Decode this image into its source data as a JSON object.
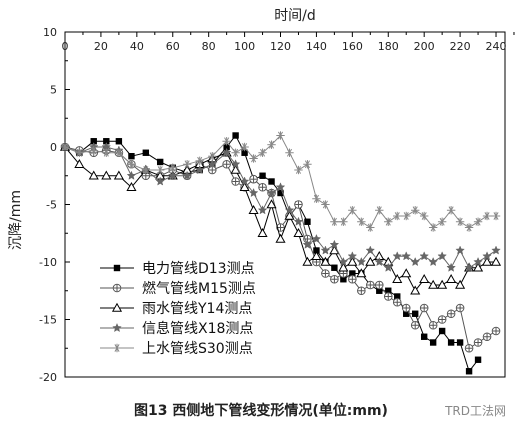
{
  "chart_data": {
    "type": "line",
    "title": "",
    "xlabel": "时间/d",
    "ylabel": "沉降/mm",
    "xlim": [
      0,
      245
    ],
    "ylim": [
      -20,
      10
    ],
    "xticks": [
      0,
      20,
      40,
      60,
      80,
      100,
      120,
      140,
      160,
      180,
      200,
      220,
      240
    ],
    "yticks": [
      10,
      5,
      0,
      -5,
      -10,
      -15,
      -20
    ],
    "x_axis_position": "top",
    "grid": false,
    "legend_position": "bottom-left",
    "series": [
      {
        "name": "电力管线D13测点",
        "marker": "square-filled",
        "color": "#000000",
        "x": [
          0,
          8,
          16,
          23,
          30,
          37,
          45,
          53,
          60,
          68,
          75,
          82,
          90,
          95,
          100,
          105,
          110,
          115,
          120,
          125,
          130,
          135,
          140,
          145,
          150,
          155,
          160,
          165,
          170,
          175,
          180,
          185,
          190,
          195,
          200,
          205,
          210,
          215,
          220,
          225,
          230
        ],
        "y": [
          0,
          -0.5,
          0.5,
          0.5,
          0.5,
          -0.8,
          -0.5,
          -1.3,
          -1.8,
          -2.2,
          -2,
          -1.5,
          0,
          1,
          -0.5,
          -2.8,
          -2.5,
          -3,
          -4,
          -6,
          -5,
          -6.5,
          -9,
          -10,
          -10.5,
          -11.5,
          -11,
          -11,
          -12,
          -12.5,
          -12.5,
          -13,
          -14.5,
          -14.5,
          -16.5,
          -17,
          -16,
          -17,
          -17,
          -19.5,
          -18.5
        ]
      },
      {
        "name": "燃气管线M15测点",
        "marker": "circle-cross",
        "color": "#555555",
        "x": [
          0,
          8,
          16,
          23,
          30,
          37,
          45,
          53,
          60,
          68,
          75,
          82,
          90,
          95,
          100,
          105,
          110,
          115,
          120,
          125,
          130,
          135,
          140,
          145,
          150,
          155,
          160,
          165,
          170,
          175,
          180,
          185,
          190,
          195,
          200,
          205,
          210,
          215,
          220,
          225,
          230,
          235,
          240
        ],
        "y": [
          0,
          -0.3,
          -0.5,
          -0.3,
          -0.5,
          -1.5,
          -2.5,
          -2.5,
          -2,
          -2.5,
          -1.5,
          -2,
          -1.5,
          -3,
          -3.5,
          -2.8,
          -3.5,
          -4,
          -7,
          -6,
          -5,
          -8,
          -10,
          -11,
          -11.5,
          -11,
          -11.5,
          -12.5,
          -12,
          -12,
          -13,
          -13.5,
          -14,
          -15.5,
          -14,
          -15.5,
          -15,
          -14.5,
          -14,
          -17.5,
          -17,
          -16.5,
          -16
        ]
      },
      {
        "name": "雨水管线Y14测点",
        "marker": "triangle-open",
        "color": "#000000",
        "x": [
          0,
          8,
          16,
          23,
          30,
          37,
          45,
          53,
          60,
          68,
          75,
          82,
          90,
          95,
          100,
          105,
          110,
          115,
          120,
          125,
          130,
          135,
          140,
          145,
          150,
          155,
          160,
          165,
          170,
          175,
          180,
          185,
          190,
          195,
          200,
          205,
          210,
          215,
          220,
          225,
          230,
          235,
          240
        ],
        "y": [
          0,
          -1.5,
          -2.5,
          -2.5,
          -2.5,
          -3.5,
          -2,
          -2.5,
          -2.5,
          -2,
          -1.5,
          -1,
          -0.5,
          -2,
          -3.5,
          -5.5,
          -7.5,
          -5,
          -8,
          -6,
          -7.5,
          -10,
          -9.5,
          -10,
          -9,
          -10.5,
          -10,
          -11,
          -10,
          -9.5,
          -10,
          -11.5,
          -11,
          -12.5,
          -11.5,
          -12,
          -12,
          -11.5,
          -12,
          -10.5,
          -10.5,
          -10,
          -10
        ]
      },
      {
        "name": "信息管线X18测点",
        "marker": "star",
        "color": "#666666",
        "x": [
          0,
          8,
          16,
          23,
          30,
          37,
          45,
          53,
          60,
          68,
          75,
          82,
          90,
          95,
          100,
          105,
          110,
          115,
          120,
          125,
          130,
          135,
          140,
          145,
          150,
          155,
          160,
          165,
          170,
          175,
          180,
          185,
          190,
          195,
          200,
          205,
          210,
          215,
          220,
          225,
          230,
          235,
          240
        ],
        "y": [
          0,
          -0.5,
          0,
          0,
          -0.3,
          -2.5,
          -2,
          -3,
          -2.5,
          -2.5,
          -2,
          -1.5,
          -0.5,
          -1.5,
          -3,
          -4,
          -5.5,
          -4,
          -3.5,
          -5.5,
          -6.5,
          -8.5,
          -8,
          -9,
          -8.5,
          -10,
          -9.5,
          -10,
          -9,
          -10,
          -10.5,
          -9.5,
          -9.5,
          -10,
          -9.5,
          -10,
          -9.5,
          -10.5,
          -9,
          -10.5,
          -10,
          -9.5,
          -9
        ]
      },
      {
        "name": "上水管线S30测点",
        "marker": "asterisk",
        "color": "#888888",
        "x": [
          0,
          8,
          16,
          23,
          30,
          37,
          45,
          53,
          60,
          68,
          75,
          82,
          90,
          95,
          100,
          105,
          110,
          115,
          120,
          125,
          130,
          135,
          140,
          145,
          150,
          155,
          160,
          165,
          170,
          175,
          180,
          185,
          190,
          195,
          200,
          205,
          210,
          215,
          220,
          225,
          230,
          235,
          240
        ],
        "y": [
          0,
          -0.5,
          -0.3,
          -0.5,
          -0.5,
          -1.5,
          -2,
          -2,
          -1.8,
          -1.5,
          -1.2,
          -0.8,
          0.5,
          -0.5,
          0,
          -1,
          -0.5,
          0.2,
          1,
          -0.5,
          -2,
          -1.5,
          -4.5,
          -5,
          -6.5,
          -6.5,
          -5.5,
          -6.5,
          -7,
          -5.5,
          -6.5,
          -6,
          -6,
          -5.5,
          -6,
          -7,
          -6.5,
          -5.5,
          -6.5,
          -7,
          -6.5,
          -6,
          -6
        ]
      }
    ]
  },
  "figure": {
    "caption": "图13    西侧地下管线变形情况(单位:mm)",
    "watermark": "TRD工法网"
  }
}
